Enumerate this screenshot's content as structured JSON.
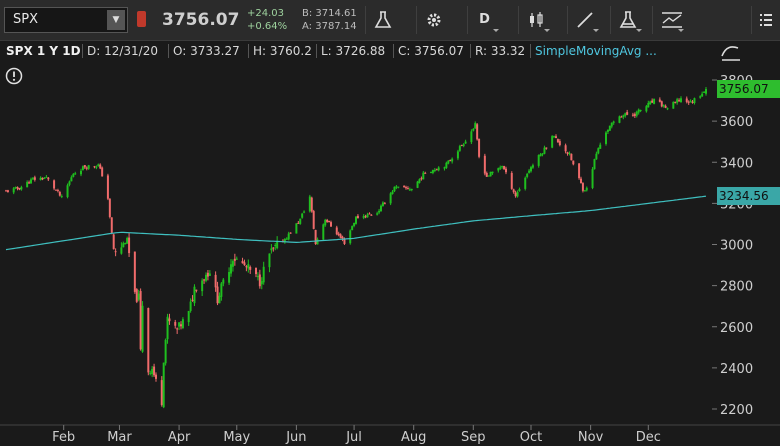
{
  "toolbar": {
    "symbol": "SPX",
    "last_price": "3756.07",
    "net_change": "+24.03",
    "pct_change": "+0.64%",
    "bid": "B: 3714.61",
    "ask": "A: 3787.14",
    "aggregation_label": "D",
    "icons": [
      "beaker-icon",
      "gear-icon",
      "aggregation-menu",
      "candlestick-icon",
      "drawing-line-icon",
      "studies-beaker-icon",
      "chart-style-icon",
      "menu-icon"
    ]
  },
  "info": {
    "title": "SPX 1 Y 1D",
    "date": "D: 12/31/20",
    "open": "O: 3733.27",
    "high": "H: 3760.2",
    "low": "L: 3726.88",
    "close": "C: 3756.07",
    "range": "R: 33.32",
    "study": "SimpleMovingAvg ..."
  },
  "tags": {
    "last": "3756.07",
    "sma": "3234.56"
  },
  "colors": {
    "up": "#1fbf1f",
    "down": "#f06b6b",
    "sma": "#3fc0c0",
    "last_tag": "#2ebd2e",
    "sma_tag": "#3aa7a7",
    "background": "#1a1a1a"
  },
  "chart_data": {
    "type": "candlestick",
    "title": "SPX 1 Y 1D",
    "y_ticks": [
      2200,
      2400,
      2600,
      2800,
      3000,
      3200,
      3400,
      3600,
      3800
    ],
    "ylim": [
      2150,
      3800
    ],
    "x_ticks": [
      "Feb",
      "Mar",
      "Apr",
      "May",
      "Jun",
      "Jul",
      "Aug",
      "Sep",
      "Oct",
      "Nov",
      "Dec"
    ],
    "x_range": [
      "2020-01-02",
      "2020-12-31"
    ],
    "grid": false,
    "closes": [
      [
        "2020-01-02",
        3258
      ],
      [
        "2020-01-09",
        3275
      ],
      [
        "2020-01-16",
        3317
      ],
      [
        "2020-01-23",
        3325
      ],
      [
        "2020-01-31",
        3226
      ],
      [
        "2020-02-06",
        3345
      ],
      [
        "2020-02-12",
        3379
      ],
      [
        "2020-02-19",
        3386
      ],
      [
        "2020-02-21",
        3338
      ],
      [
        "2020-02-24",
        3225
      ],
      [
        "2020-02-25",
        3128
      ],
      [
        "2020-02-27",
        2978
      ],
      [
        "2020-02-28",
        2954
      ],
      [
        "2020-03-03",
        3003
      ],
      [
        "2020-03-05",
        3023
      ],
      [
        "2020-03-09",
        2746
      ],
      [
        "2020-03-11",
        2741
      ],
      [
        "2020-03-12",
        2480
      ],
      [
        "2020-03-13",
        2711
      ],
      [
        "2020-03-16",
        2386
      ],
      [
        "2020-03-18",
        2398
      ],
      [
        "2020-03-23",
        2237
      ],
      [
        "2020-03-24",
        2447
      ],
      [
        "2020-03-26",
        2630
      ],
      [
        "2020-03-31",
        2585
      ],
      [
        "2020-04-06",
        2664
      ],
      [
        "2020-04-09",
        2789
      ],
      [
        "2020-04-17",
        2875
      ],
      [
        "2020-04-21",
        2737
      ],
      [
        "2020-04-29",
        2939
      ],
      [
        "2020-05-07",
        2881
      ],
      [
        "2020-05-13",
        2820
      ],
      [
        "2020-05-18",
        2953
      ],
      [
        "2020-05-27",
        3036
      ],
      [
        "2020-06-03",
        3122
      ],
      [
        "2020-06-08",
        3232
      ],
      [
        "2020-06-11",
        3002
      ],
      [
        "2020-06-16",
        3125
      ],
      [
        "2020-06-26",
        3009
      ],
      [
        "2020-07-02",
        3130
      ],
      [
        "2020-07-13",
        3155
      ],
      [
        "2020-07-22",
        3276
      ],
      [
        "2020-07-31",
        3271
      ],
      [
        "2020-08-07",
        3351
      ],
      [
        "2020-08-18",
        3389
      ],
      [
        "2020-08-28",
        3508
      ],
      [
        "2020-09-02",
        3580
      ],
      [
        "2020-09-04",
        3426
      ],
      [
        "2020-09-08",
        3331
      ],
      [
        "2020-09-16",
        3385
      ],
      [
        "2020-09-23",
        3237
      ],
      [
        "2020-09-30",
        3363
      ],
      [
        "2020-10-09",
        3477
      ],
      [
        "2020-10-12",
        3534
      ],
      [
        "2020-10-21",
        3435
      ],
      [
        "2020-10-28",
        3271
      ],
      [
        "2020-10-30",
        3270
      ],
      [
        "2020-11-04",
        3443
      ],
      [
        "2020-11-09",
        3550
      ],
      [
        "2020-11-16",
        3627
      ],
      [
        "2020-11-24",
        3635
      ],
      [
        "2020-12-04",
        3699
      ],
      [
        "2020-12-11",
        3663
      ],
      [
        "2020-12-18",
        3709
      ],
      [
        "2020-12-23",
        3690
      ],
      [
        "2020-12-31",
        3756
      ]
    ],
    "sma_200": [
      [
        "2020-01-02",
        2975
      ],
      [
        "2020-03-01",
        3060
      ],
      [
        "2020-04-01",
        3045
      ],
      [
        "2020-05-01",
        3025
      ],
      [
        "2020-06-01",
        3010
      ],
      [
        "2020-07-01",
        3030
      ],
      [
        "2020-08-01",
        3075
      ],
      [
        "2020-09-01",
        3115
      ],
      [
        "2020-10-01",
        3140
      ],
      [
        "2020-11-01",
        3165
      ],
      [
        "2020-12-01",
        3200
      ],
      [
        "2020-12-31",
        3235
      ]
    ],
    "last": 3756.07,
    "sma_last": 3234.56
  }
}
